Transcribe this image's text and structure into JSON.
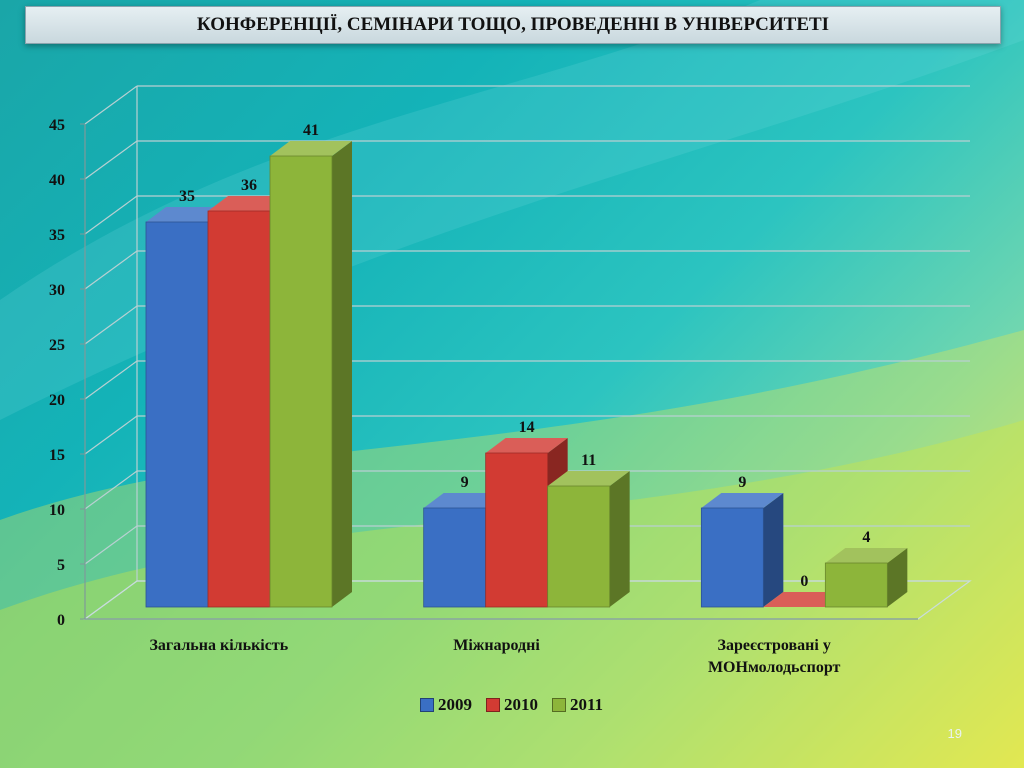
{
  "slide": {
    "title": "КОНФЕРЕНЦІЇ, СЕМІНАРИ ТОЩО, ПРОВЕДЕННІ В УНІВЕРСИТЕТІ",
    "page_number": "19"
  },
  "chart_data": {
    "type": "bar",
    "style": "3d-clustered",
    "categories": [
      "Загальна кількість",
      "Міжнародні",
      "Зареєстровані у МОНмолодьспорт"
    ],
    "category_lines": [
      [
        "Загальна кількість"
      ],
      [
        "Міжнародні"
      ],
      [
        "Зареєстровані у",
        "МОНмолодьспорт"
      ]
    ],
    "series": [
      {
        "name": "2009",
        "values": [
          35,
          9,
          9
        ],
        "color": "#3a6fc4"
      },
      {
        "name": "2010",
        "values": [
          36,
          14,
          0
        ],
        "color": "#d23b33"
      },
      {
        "name": "2011",
        "values": [
          41,
          11,
          4
        ],
        "color": "#8db53a"
      }
    ],
    "ylim": [
      0,
      45
    ],
    "yticks": [
      0,
      5,
      10,
      15,
      20,
      25,
      30,
      35,
      40,
      45
    ],
    "grid": true,
    "legend": "bottom",
    "data_labels": true
  }
}
